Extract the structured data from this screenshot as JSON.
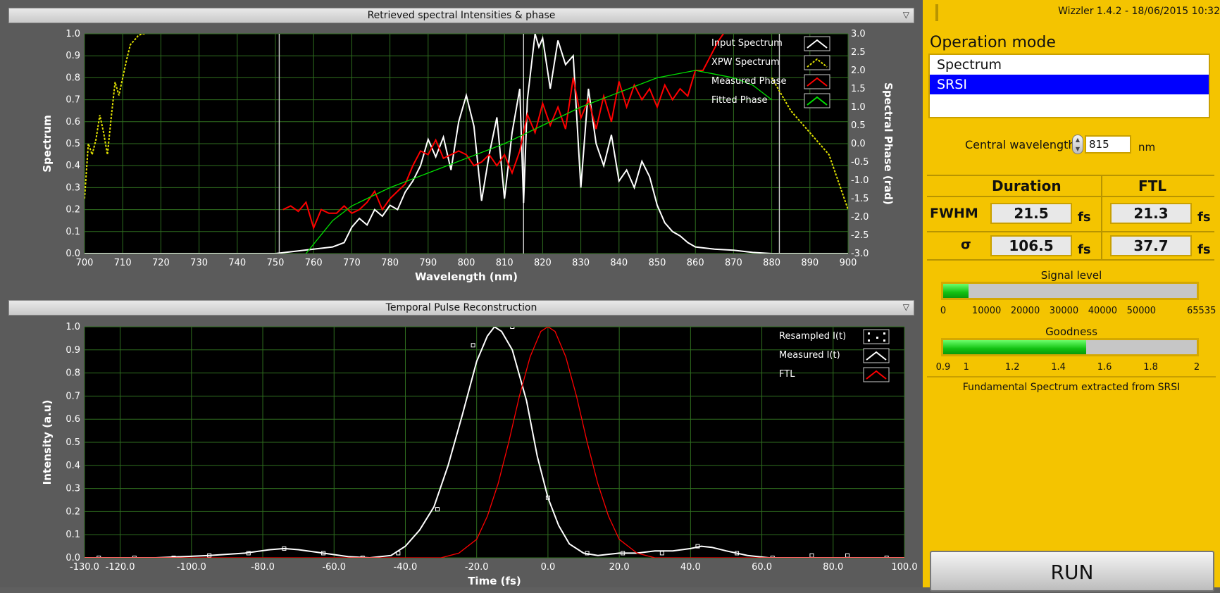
{
  "spectral_panel": {
    "title": "Retrieved spectral Intensities & phase",
    "chart_data": {
      "type": "line",
      "xlabel": "Wavelength (nm)",
      "ylabel": "Spectrum",
      "y2label": "Spectral Phase (rad)",
      "xlim": [
        700,
        900
      ],
      "ylim": [
        0,
        1
      ],
      "y2lim": [
        -3,
        3
      ],
      "x_ticks": [
        700,
        710,
        720,
        730,
        740,
        750,
        760,
        770,
        780,
        790,
        800,
        810,
        820,
        830,
        840,
        850,
        860,
        870,
        880,
        890,
        900
      ],
      "y_ticks": [
        0.0,
        0.1,
        0.2,
        0.3,
        0.4,
        0.5,
        0.6,
        0.7,
        0.8,
        0.9,
        1.0
      ],
      "y2_ticks": [
        -3.0,
        -2.5,
        -2.0,
        -1.5,
        -1.0,
        -0.5,
        0.0,
        0.5,
        1.0,
        1.5,
        2.0,
        2.5,
        3.0
      ],
      "markers_x": [
        751,
        815,
        882
      ],
      "legend_position": "top-right",
      "grid": true,
      "series": [
        {
          "name": "Input Spectrum",
          "axis": "left",
          "color": "#ffffff",
          "x": [
            700,
            750,
            755,
            760,
            765,
            768,
            770,
            772,
            774,
            776,
            778,
            780,
            782,
            784,
            786,
            788,
            790,
            792,
            794,
            796,
            798,
            800,
            802,
            804,
            806,
            808,
            810,
            812,
            814,
            815,
            816,
            818,
            819,
            820,
            822,
            824,
            826,
            828,
            830,
            832,
            834,
            836,
            838,
            840,
            842,
            844,
            846,
            848,
            850,
            852,
            854,
            856,
            858,
            860,
            865,
            870,
            875,
            880,
            900
          ],
          "y": [
            0,
            0,
            0.01,
            0.02,
            0.03,
            0.05,
            0.12,
            0.16,
            0.13,
            0.2,
            0.17,
            0.22,
            0.2,
            0.28,
            0.33,
            0.4,
            0.52,
            0.44,
            0.53,
            0.38,
            0.6,
            0.72,
            0.58,
            0.24,
            0.45,
            0.62,
            0.25,
            0.55,
            0.75,
            0.23,
            0.7,
            1.0,
            0.94,
            0.98,
            0.75,
            0.97,
            0.86,
            0.9,
            0.3,
            0.75,
            0.5,
            0.4,
            0.54,
            0.33,
            0.38,
            0.3,
            0.42,
            0.35,
            0.22,
            0.14,
            0.1,
            0.08,
            0.05,
            0.03,
            0.02,
            0.015,
            0.005,
            0,
            0
          ]
        },
        {
          "name": "XPW Spectrum",
          "axis": "left",
          "color": "#e0e000",
          "dashed": true,
          "x": [
            700,
            701,
            702,
            703,
            704,
            705,
            706,
            707,
            708,
            709,
            710,
            711,
            712,
            713,
            714,
            715,
            716
          ],
          "y": [
            0.25,
            0.5,
            0.45,
            0.52,
            0.63,
            0.55,
            0.45,
            0.62,
            0.78,
            0.72,
            0.8,
            0.88,
            0.95,
            0.97,
            0.99,
            1.0,
            1.0
          ]
        },
        {
          "name": "XPW Spectrum",
          "axis": "left",
          "color": "#e0e000",
          "dashed": true,
          "x": [
            880,
            885,
            890,
            895,
            898,
            900
          ],
          "y": [
            0.8,
            0.65,
            0.55,
            0.45,
            0.3,
            0.2
          ]
        },
        {
          "name": "Measured Phase",
          "axis": "right",
          "color": "#ff0000",
          "x": [
            752,
            754,
            756,
            758,
            760,
            762,
            764,
            766,
            768,
            770,
            772,
            774,
            776,
            778,
            780,
            782,
            784,
            786,
            788,
            790,
            792,
            794,
            796,
            798,
            800,
            802,
            804,
            806,
            808,
            810,
            812,
            814,
            816,
            818,
            820,
            822,
            824,
            826,
            828,
            830,
            832,
            834,
            836,
            838,
            840,
            842,
            844,
            846,
            848,
            850,
            852,
            854,
            856,
            858,
            860,
            862,
            864,
            866,
            868,
            870
          ],
          "y": [
            -1.8,
            -1.7,
            -1.85,
            -1.6,
            -2.3,
            -1.8,
            -1.9,
            -1.9,
            -1.7,
            -1.9,
            -1.8,
            -1.6,
            -1.3,
            -1.8,
            -1.5,
            -1.3,
            -1.1,
            -0.6,
            -0.2,
            -0.3,
            0.1,
            -0.4,
            -0.3,
            -0.2,
            -0.3,
            -0.6,
            -0.5,
            -0.3,
            -0.6,
            -0.3,
            -0.8,
            -0.2,
            0.8,
            0.3,
            1.1,
            0.5,
            1.0,
            0.4,
            1.8,
            0.7,
            1.2,
            0.4,
            1.3,
            0.6,
            1.7,
            1.0,
            1.6,
            1.2,
            1.5,
            1.0,
            1.6,
            1.2,
            1.5,
            1.3,
            2.0,
            2.0,
            2.4,
            2.8,
            3.1,
            3.3
          ]
        },
        {
          "name": "Fitted Phase",
          "axis": "right",
          "color": "#00e000",
          "x": [
            758,
            765,
            770,
            780,
            790,
            800,
            810,
            820,
            830,
            840,
            850,
            860,
            865,
            870,
            875,
            880
          ],
          "y": [
            -3.0,
            -2.1,
            -1.7,
            -1.2,
            -0.8,
            -0.4,
            0.0,
            0.5,
            1.0,
            1.4,
            1.8,
            2.0,
            1.9,
            1.8,
            1.6,
            1.2
          ]
        }
      ]
    }
  },
  "temporal_panel": {
    "title": "Temporal Pulse Reconstruction",
    "chart_data": {
      "type": "line",
      "xlabel": "Time (fs)",
      "ylabel": "Intensity (a.u)",
      "xlim": [
        -130,
        100
      ],
      "ylim": [
        0,
        1
      ],
      "x_ticks": [
        -130.0,
        -120.0,
        -100.0,
        -80.0,
        -60.0,
        -40.0,
        -20.0,
        0.0,
        20.0,
        40.0,
        60.0,
        80.0,
        100.0
      ],
      "y_ticks": [
        0.0,
        0.1,
        0.2,
        0.3,
        0.4,
        0.5,
        0.6,
        0.7,
        0.8,
        0.9,
        1.0
      ],
      "legend_position": "top-right",
      "grid": true,
      "series": [
        {
          "name": "Resampled I(t)",
          "color": "#ffffff",
          "marker": "square",
          "x": [
            -126,
            -116,
            -105,
            -95,
            -84,
            -74,
            -63,
            -52,
            -42,
            -31,
            -21,
            -10,
            0,
            11,
            21,
            32,
            42,
            53,
            63,
            74,
            84,
            95
          ],
          "y": [
            0.0,
            0.0,
            0.0,
            0.01,
            0.02,
            0.04,
            0.02,
            0.0,
            0.02,
            0.21,
            0.92,
            1.0,
            0.26,
            0.02,
            0.02,
            0.02,
            0.05,
            0.02,
            0.0,
            0.01,
            0.01,
            0.0
          ]
        },
        {
          "name": "Measured I(t)",
          "color": "#ffffff",
          "x": [
            -130,
            -110,
            -95,
            -85,
            -78,
            -74,
            -70,
            -63,
            -56,
            -50,
            -44,
            -40,
            -36,
            -32,
            -28,
            -24,
            -20,
            -17,
            -15,
            -13,
            -10,
            -6,
            -3,
            0,
            3,
            6,
            10,
            14,
            20,
            25,
            30,
            35,
            40,
            43,
            46,
            50,
            56,
            62,
            70,
            80,
            90,
            100
          ],
          "y": [
            0.0,
            0.0,
            0.01,
            0.02,
            0.035,
            0.04,
            0.035,
            0.02,
            0.005,
            0.0,
            0.01,
            0.05,
            0.12,
            0.22,
            0.4,
            0.62,
            0.85,
            0.96,
            1.0,
            0.98,
            0.9,
            0.68,
            0.44,
            0.26,
            0.14,
            0.06,
            0.02,
            0.01,
            0.02,
            0.02,
            0.03,
            0.03,
            0.04,
            0.05,
            0.045,
            0.03,
            0.01,
            0.0,
            0.0,
            0.0,
            0.0,
            0.0
          ]
        },
        {
          "name": "FTL",
          "color": "#ff0000",
          "x": [
            -130,
            -30,
            -25,
            -20,
            -17,
            -14,
            -11,
            -8,
            -5,
            -2,
            0,
            2,
            5,
            8,
            11,
            14,
            17,
            20,
            25,
            30,
            100
          ],
          "y": [
            0,
            0,
            0.02,
            0.08,
            0.18,
            0.32,
            0.5,
            0.7,
            0.87,
            0.98,
            1.0,
            0.98,
            0.87,
            0.7,
            0.5,
            0.32,
            0.18,
            0.08,
            0.02,
            0,
            0
          ]
        }
      ]
    }
  },
  "sidebar": {
    "version": "Wizzler 1.4.2 - 18/06/2015 10:32",
    "operation_mode_label": "Operation mode",
    "modes": [
      {
        "label": "Spectrum"
      },
      {
        "label": "SRSI"
      }
    ],
    "central_wavelength_label": "Central wavelength",
    "central_wavelength_value": "815",
    "central_wavelength_unit": "nm",
    "table": {
      "col_duration": "Duration",
      "col_ftl": "FTL",
      "row_fwhm": "FWHM",
      "row_sigma": "σ",
      "fwhm_duration": "21.5",
      "fwhm_ftl": "21.3",
      "sigma_duration": "106.5",
      "sigma_ftl": "37.7",
      "unit": "fs"
    },
    "signal_level": {
      "label": "Signal level",
      "value": 6500,
      "min": 0,
      "max": 65535,
      "ticks": [
        "0",
        "10000",
        "20000",
        "30000",
        "40000",
        "50000",
        "65535"
      ]
    },
    "goodness": {
      "label": "Goodness",
      "value": 1.52,
      "min": 0.9,
      "max": 2,
      "ticks": [
        "0.9",
        "1",
        "1.2",
        "1.4",
        "1.6",
        "1.8",
        "2"
      ]
    },
    "footer": "Fundamental Spectrum extracted from SRSI",
    "run_label": "RUN"
  },
  "colors": {
    "accent": "#f4c400",
    "selected": "#0000ff",
    "plot_bg": "#000000",
    "grid": "#3a7a25"
  }
}
